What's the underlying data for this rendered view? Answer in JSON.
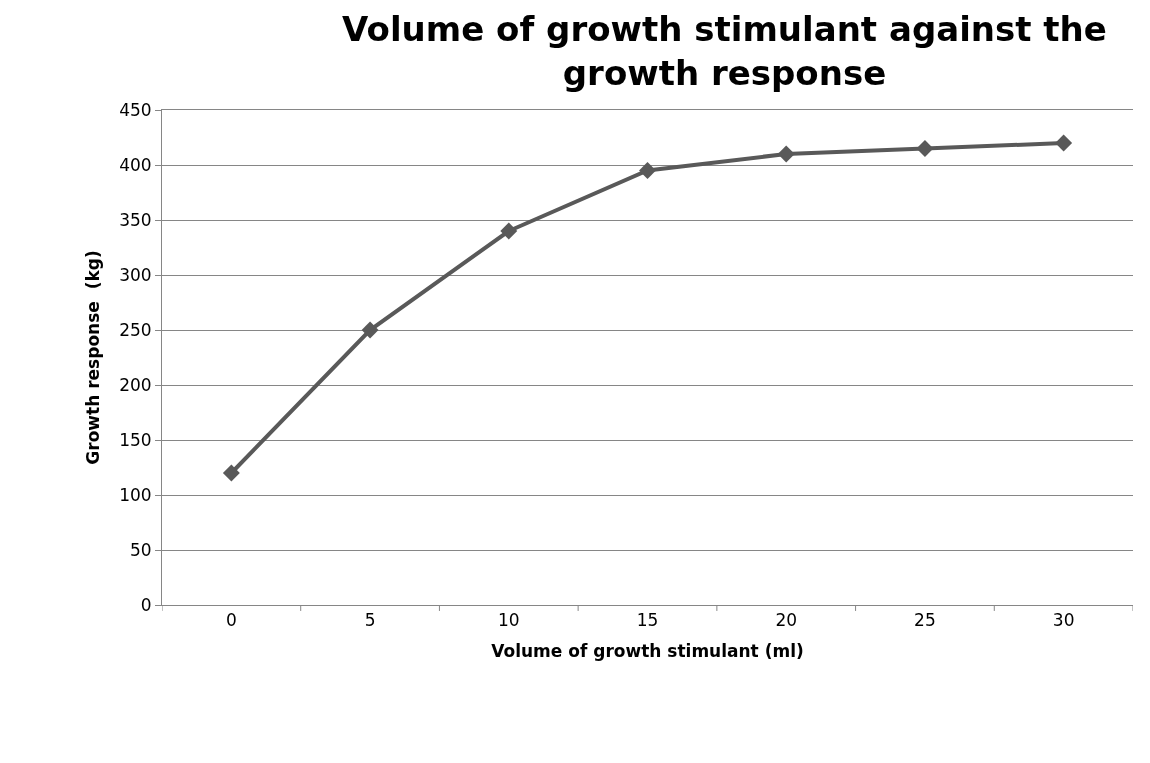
{
  "chart_data": {
    "type": "line",
    "title": "Volume of growth stimulant against the growth response",
    "xlabel": "Volume of growth stimulant (ml)",
    "ylabel": "Growth response  (kg)",
    "categories": [
      "0",
      "5",
      "10",
      "15",
      "20",
      "25",
      "30"
    ],
    "series": [
      {
        "color": "#595959",
        "values": [
          120,
          250,
          340,
          395,
          410,
          415,
          420
        ]
      }
    ],
    "ylim": [
      0,
      450
    ],
    "yticks": [
      0,
      50,
      100,
      150,
      200,
      250,
      300,
      350,
      400,
      450
    ],
    "grid": "y",
    "marker": "diamond",
    "line_style": "solid"
  }
}
